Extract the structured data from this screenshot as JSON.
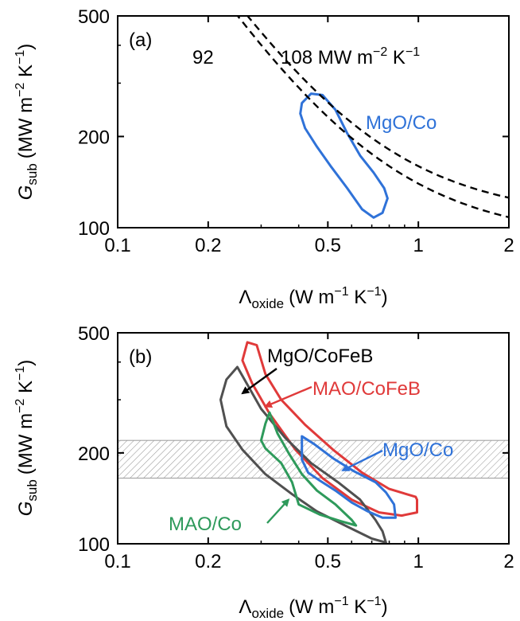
{
  "chart_data": [
    {
      "type": "line",
      "panel_label": "(a)",
      "xscale": "log",
      "yscale": "log",
      "xlim": [
        0.1,
        2
      ],
      "ylim": [
        100,
        500
      ],
      "xticks": [
        0.1,
        0.2,
        0.5,
        1,
        2
      ],
      "xtick_labels": [
        "0.1",
        "0.2",
        "0.5",
        "1",
        "2"
      ],
      "yticks": [
        100,
        200,
        500
      ],
      "ytick_labels": [
        "100",
        "200",
        "500"
      ],
      "xlabel": {
        "symbol": "Λ",
        "sub": "oxide",
        "units": "(W m",
        "exp1": "−1",
        "mid": " K",
        "exp2": "−1",
        "end": ")"
      },
      "ylabel": {
        "symbol": "G",
        "sub": "sub",
        "units": "(MW m",
        "exp1": "−2",
        "mid": " K",
        "exp2": "−1",
        "end": ")"
      },
      "grid": false,
      "annotations": [
        {
          "text": "92",
          "color": "#000000"
        },
        {
          "text": "108 MW m",
          "sup1": "−2",
          "mid": " K",
          "sup2": "−1",
          "color": "#000000"
        }
      ],
      "series": [
        {
          "name": "MgO/Co",
          "color": "#2f72d8",
          "style": "solid",
          "closed": true,
          "points": [
            [
              0.44,
              277
            ],
            [
              0.48,
              274
            ],
            [
              0.53,
              245
            ],
            [
              0.58,
              205
            ],
            [
              0.64,
              173
            ],
            [
              0.71,
              152
            ],
            [
              0.77,
              135
            ],
            [
              0.79,
              125
            ],
            [
              0.76,
              112
            ],
            [
              0.71,
              108
            ],
            [
              0.65,
              115
            ],
            [
              0.58,
              135
            ],
            [
              0.51,
              160
            ],
            [
              0.46,
              185
            ],
            [
              0.42,
              213
            ],
            [
              0.405,
              238
            ],
            [
              0.41,
              258
            ],
            [
              0.44,
              277
            ]
          ]
        },
        {
          "name": "G = 92 MW m^-2 K^-1",
          "color": "#000000",
          "style": "dashed",
          "closed": false,
          "curve_g": 92,
          "x_range": [
            0.22,
            2
          ]
        },
        {
          "name": "G = 108 MW m^-2 K^-1",
          "color": "#000000",
          "style": "dashed",
          "closed": false,
          "curve_g": 108,
          "x_range": [
            0.24,
            2
          ]
        }
      ]
    },
    {
      "type": "line",
      "panel_label": "(b)",
      "xscale": "log",
      "yscale": "log",
      "xlim": [
        0.1,
        2
      ],
      "ylim": [
        100,
        500
      ],
      "xticks": [
        0.1,
        0.2,
        0.5,
        1,
        2
      ],
      "xtick_labels": [
        "0.1",
        "0.2",
        "0.5",
        "1",
        "2"
      ],
      "yticks": [
        100,
        200,
        500
      ],
      "ytick_labels": [
        "100",
        "200",
        "500"
      ],
      "xlabel": {
        "symbol": "Λ",
        "sub": "oxide",
        "units": "(W m",
        "exp1": "−1",
        "mid": " K",
        "exp2": "−1",
        "end": ")"
      },
      "ylabel": {
        "symbol": "G",
        "sub": "sub",
        "units": "(MW m",
        "exp1": "−2",
        "mid": " K",
        "exp2": "−1",
        "end": ")"
      },
      "grid": false,
      "shaded_band": {
        "ylim": [
          165,
          220
        ],
        "pattern": "hatched",
        "color": "#9a9a9a"
      },
      "series": [
        {
          "name": "MAO/CoFeB",
          "color": "#e03a3a",
          "closed": true,
          "points": [
            [
              0.27,
              465
            ],
            [
              0.29,
              455
            ],
            [
              0.31,
              365
            ],
            [
              0.35,
              300
            ],
            [
              0.42,
              248
            ],
            [
              0.52,
              205
            ],
            [
              0.65,
              172
            ],
            [
              0.8,
              152
            ],
            [
              0.98,
              143
            ],
            [
              0.99,
              140
            ],
            [
              0.99,
              127
            ],
            [
              0.88,
              124
            ],
            [
              0.74,
              127
            ],
            [
              0.6,
              140
            ],
            [
              0.48,
              165
            ],
            [
              0.39,
              205
            ],
            [
              0.32,
              270
            ],
            [
              0.28,
              340
            ],
            [
              0.26,
              405
            ],
            [
              0.27,
              465
            ]
          ]
        },
        {
          "name": "MgO/CoFeB",
          "color": "#505050",
          "closed": true,
          "points": [
            [
              0.25,
              385
            ],
            [
              0.26,
              360
            ],
            [
              0.3,
              280
            ],
            [
              0.36,
              225
            ],
            [
              0.44,
              185
            ],
            [
              0.54,
              160
            ],
            [
              0.64,
              140
            ],
            [
              0.72,
              120
            ],
            [
              0.76,
              110
            ],
            [
              0.78,
              101
            ],
            [
              0.7,
              104
            ],
            [
              0.58,
              114
            ],
            [
              0.46,
              128
            ],
            [
              0.38,
              146
            ],
            [
              0.31,
              170
            ],
            [
              0.26,
              205
            ],
            [
              0.23,
              245
            ],
            [
              0.22,
              300
            ],
            [
              0.23,
              350
            ],
            [
              0.25,
              385
            ]
          ]
        },
        {
          "name": "MAO/Co",
          "color": "#2e9a5b",
          "closed": true,
          "points": [
            [
              0.32,
              272
            ],
            [
              0.34,
              232
            ],
            [
              0.37,
              200
            ],
            [
              0.41,
              170
            ],
            [
              0.46,
              150
            ],
            [
              0.53,
              135
            ],
            [
              0.6,
              120
            ],
            [
              0.62,
              115
            ],
            [
              0.55,
              119
            ],
            [
              0.47,
              125
            ],
            [
              0.4,
              135
            ],
            [
              0.38,
              160
            ],
            [
              0.35,
              185
            ],
            [
              0.31,
              207
            ],
            [
              0.3,
              220
            ],
            [
              0.31,
              250
            ],
            [
              0.32,
              272
            ]
          ]
        },
        {
          "name": "MgO/Co",
          "color": "#2f72d8",
          "closed": true,
          "points": [
            [
              0.41,
              227
            ],
            [
              0.45,
              214
            ],
            [
              0.52,
              192
            ],
            [
              0.61,
              174
            ],
            [
              0.72,
              160
            ],
            [
              0.78,
              148
            ],
            [
              0.83,
              135
            ],
            [
              0.84,
              122
            ],
            [
              0.76,
              122
            ],
            [
              0.68,
              128
            ],
            [
              0.6,
              137
            ],
            [
              0.53,
              150
            ],
            [
              0.47,
              162
            ],
            [
              0.43,
              172
            ],
            [
              0.41,
              190
            ],
            [
              0.41,
              210
            ],
            [
              0.41,
              227
            ]
          ]
        }
      ],
      "labels": [
        {
          "text": "MgO/CoFeB",
          "color": "#000000",
          "arrow_to": [
            0.26,
            315
          ]
        },
        {
          "text": "MAO/CoFeB",
          "color": "#e03a3a",
          "arrow_to": [
            0.31,
            285
          ]
        },
        {
          "text": "MgO/Co",
          "color": "#2f72d8",
          "arrow_to": [
            0.56,
            175
          ]
        },
        {
          "text": "MAO/Co",
          "color": "#2e9a5b",
          "arrow_to": [
            0.37,
            140
          ]
        }
      ]
    }
  ]
}
